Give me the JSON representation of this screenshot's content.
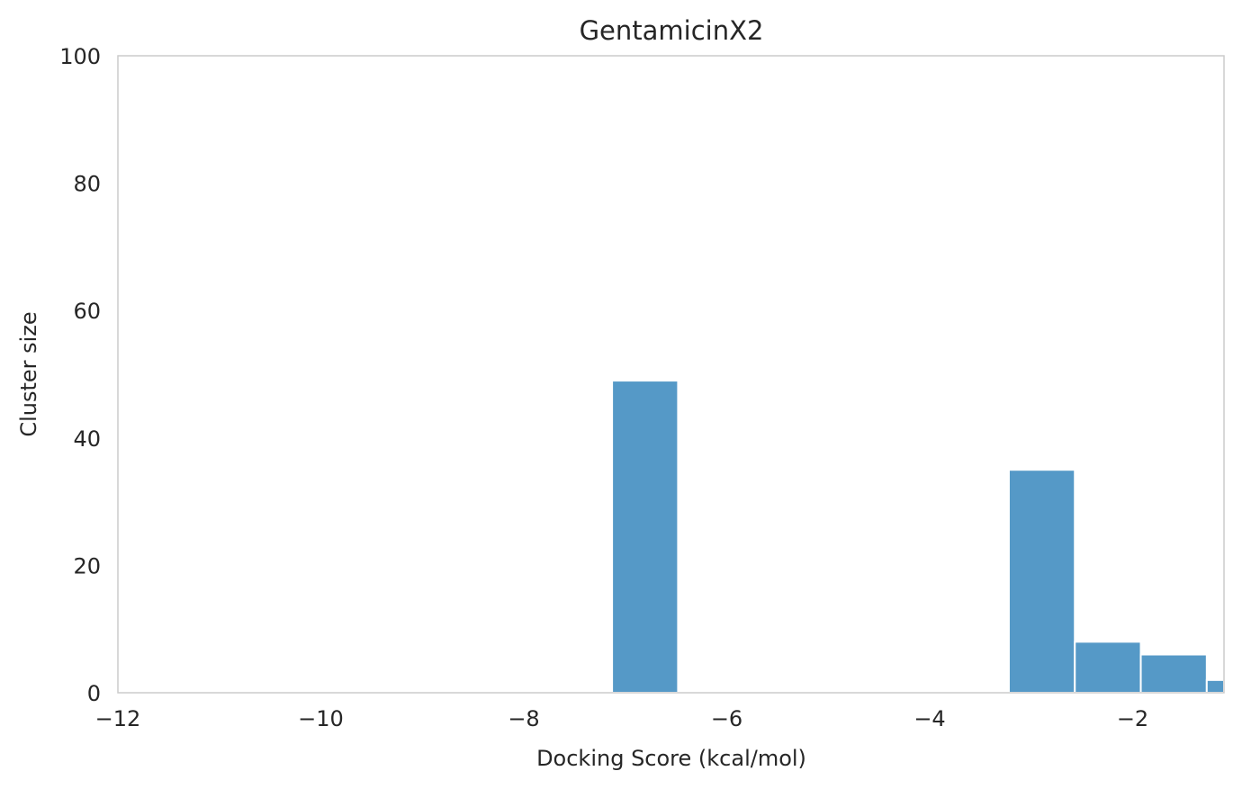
{
  "chart_data": {
    "type": "bar",
    "title": "GentamicinX2",
    "xlabel": "Docking Score (kcal/mol)",
    "ylabel": "Cluster size",
    "xlim": [
      -12,
      -1.1
    ],
    "ylim": [
      0,
      100
    ],
    "grid": false,
    "bar_color": "#5599c7",
    "xticks": [
      -12,
      -10,
      -8,
      -6,
      -4,
      -2
    ],
    "xtick_labels": [
      "−12",
      "−10",
      "−8",
      "−6",
      "−4",
      "−2"
    ],
    "yticks": [
      0,
      20,
      40,
      60,
      80,
      100
    ],
    "ytick_labels": [
      "0",
      "20",
      "40",
      "60",
      "80",
      "100"
    ],
    "bars": [
      {
        "x0": -7.13,
        "x1": -6.48,
        "value": 49
      },
      {
        "x0": -3.22,
        "x1": -2.57,
        "value": 35
      },
      {
        "x0": -2.57,
        "x1": -1.92,
        "value": 8
      },
      {
        "x0": -1.92,
        "x1": -1.27,
        "value": 6
      },
      {
        "x0": -1.27,
        "x1": -1.1,
        "value": 2
      }
    ]
  }
}
